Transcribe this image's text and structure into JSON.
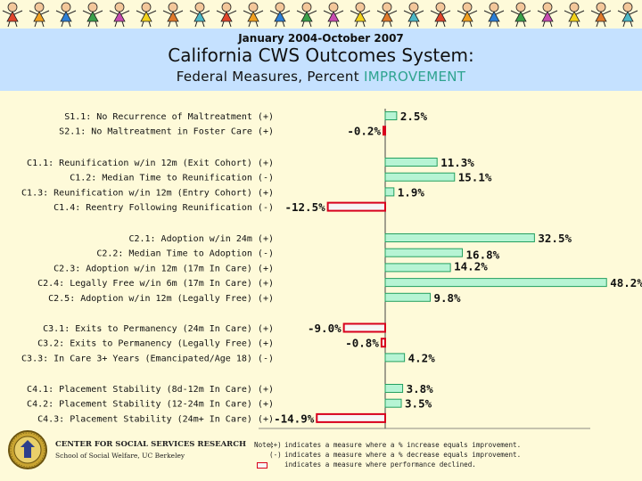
{
  "header": {
    "date_range": "January 2004-October 2007",
    "title": "California CWS Outcomes System:",
    "subtitle_prefix": "Federal Measures, Percent ",
    "subtitle_highlight": "IMPROVEMENT"
  },
  "colors": {
    "positive_fill": "#b6f4d4",
    "positive_stroke": "#24a060",
    "negative_fill": "#f6f6f6",
    "negative_stroke": "#d8001c",
    "header_bg": "#c5e1ff",
    "page_bg": "#fefad9",
    "highlight_text": "#2ea38f"
  },
  "chart_data": {
    "type": "bar",
    "orientation": "horizontal",
    "unit": "%",
    "xlim": [
      -14.9,
      48.2
    ],
    "groups": [
      {
        "measures": [
          {
            "label": "S1.1: No Recurrence of Maltreatment (+)",
            "value": 2.5,
            "display": "2.5%"
          },
          {
            "label": "S2.1: No Maltreatment in Foster Care (+)",
            "value": -0.2,
            "display": "-0.2%"
          }
        ]
      },
      {
        "measures": [
          {
            "label": "C1.1: Reunification w/in 12m (Exit Cohort) (+)",
            "value": 11.3,
            "display": "11.3%"
          },
          {
            "label": "C1.2: Median Time to Reunification (-)",
            "value": 15.1,
            "display": "15.1%"
          },
          {
            "label": "C1.3: Reunification w/in 12m (Entry Cohort) (+)",
            "value": 1.9,
            "display": "1.9%"
          },
          {
            "label": "C1.4: Reentry Following Reunification (-)",
            "value": -12.5,
            "display": "-12.5%"
          }
        ]
      },
      {
        "measures": [
          {
            "label": "C2.1: Adoption w/in 24m (+)",
            "value": 32.5,
            "display": "32.5%"
          },
          {
            "label": "C2.2: Median Time to Adoption (-)",
            "value": 16.8,
            "display": "16.8%"
          },
          {
            "label": "C2.3: Adoption w/in 12m (17m In Care) (+)",
            "value": 14.2,
            "display": "14.2%"
          },
          {
            "label": "C2.4: Legally Free w/in 6m (17m In Care) (+)",
            "value": 48.2,
            "display": "48.2%"
          },
          {
            "label": "C2.5: Adoption w/in 12m (Legally Free) (+)",
            "value": 9.8,
            "display": "9.8%"
          }
        ]
      },
      {
        "measures": [
          {
            "label": "C3.1:  Exits to Permanency (24m In Care) (+)",
            "value": -9.0,
            "display": "-9.0%"
          },
          {
            "label": "C3.2:  Exits to Permanency (Legally Free) (+)",
            "value": -0.8,
            "display": "-0.8%"
          },
          {
            "label": "C3.3: In Care 3+ Years (Emancipated/Age 18) (-)",
            "value": 4.2,
            "display": "4.2%"
          }
        ]
      },
      {
        "measures": [
          {
            "label": "C4.1: Placement Stability (8d-12m In Care) (+)",
            "value": 3.8,
            "display": "3.8%"
          },
          {
            "label": "C4.2: Placement Stability (12-24m In Care) (+)",
            "value": 3.5,
            "display": "3.5%"
          },
          {
            "label": "C4.3: Placement Stability (24m+ In Care) (+)",
            "value": -14.9,
            "display": "-14.9%"
          }
        ]
      }
    ]
  },
  "footer": {
    "org": "CENTER FOR SOCIAL SERVICES RESEARCH",
    "school": "School of Social Welfare, UC Berkeley",
    "note": [
      {
        "prefix": "Note:",
        "symbol": "(+)",
        "text": "indicates a measure where a % increase equals improvement."
      },
      {
        "prefix": "",
        "symbol": "(-)",
        "text": "indicates a measure where a % decrease equals improvement."
      },
      {
        "prefix": "",
        "symbol": "",
        "text": "indicates a measure where performance declined."
      }
    ]
  }
}
